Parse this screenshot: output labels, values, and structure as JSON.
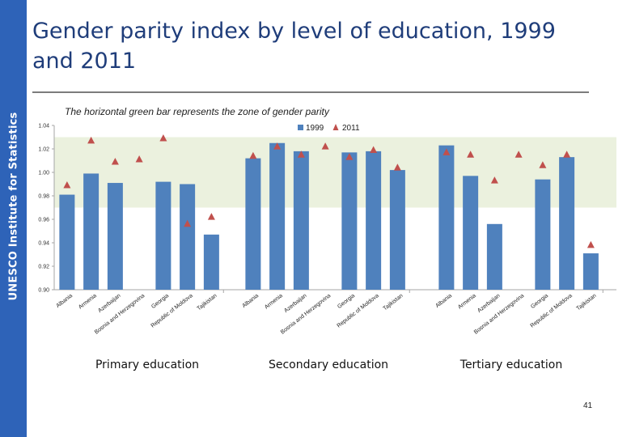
{
  "side_label": "UNESCO Institute for Statistics",
  "title": "Gender parity index by level of education, 1999 and 2011",
  "subtitle": "The horizontal green bar represents the zone of gender parity",
  "page_number": "41",
  "colors": {
    "sidebar": "#2e63b8",
    "bar_1999": "#4f81bd",
    "marker_2011": "#c0504d",
    "parity_zone": "#ebf1de",
    "title": "#1f3d7a"
  },
  "chart_data": {
    "type": "bar",
    "ylim": [
      0.9,
      1.04
    ],
    "yticks": [
      0.9,
      0.92,
      0.94,
      0.96,
      0.98,
      1.0,
      1.02,
      1.04
    ],
    "parity_zone": [
      0.97,
      1.03
    ],
    "grid": false,
    "legend_position": "top",
    "legend": [
      "1999",
      "2011"
    ],
    "categories": [
      "Albania",
      "Armenia",
      "Azerbaijan",
      "Bosnia and Herzegovina",
      "Georgia",
      "Republic of Moldova",
      "Tajikistan"
    ],
    "groups": [
      {
        "name": "Primary education",
        "series": [
          {
            "name": "1999",
            "values": [
              0.981,
              0.999,
              0.991,
              null,
              0.992,
              0.99,
              0.947
            ]
          },
          {
            "name": "2011",
            "values": [
              0.989,
              1.027,
              1.009,
              1.011,
              1.029,
              0.956,
              0.962
            ]
          }
        ]
      },
      {
        "name": "Secondary education",
        "series": [
          {
            "name": "1999",
            "values": [
              1.012,
              1.025,
              1.018,
              null,
              1.017,
              1.018,
              1.002
            ]
          },
          {
            "name": "2011",
            "values": [
              1.014,
              1.022,
              1.015,
              1.022,
              1.013,
              1.019,
              1.004
            ]
          }
        ]
      },
      {
        "name": "Tertiary education",
        "series": [
          {
            "name": "1999",
            "values": [
              1.023,
              0.997,
              0.956,
              null,
              0.994,
              1.013,
              0.931
            ]
          },
          {
            "name": "2011",
            "values": [
              1.017,
              1.015,
              0.993,
              1.015,
              1.006,
              1.015,
              0.938
            ]
          }
        ]
      }
    ]
  }
}
